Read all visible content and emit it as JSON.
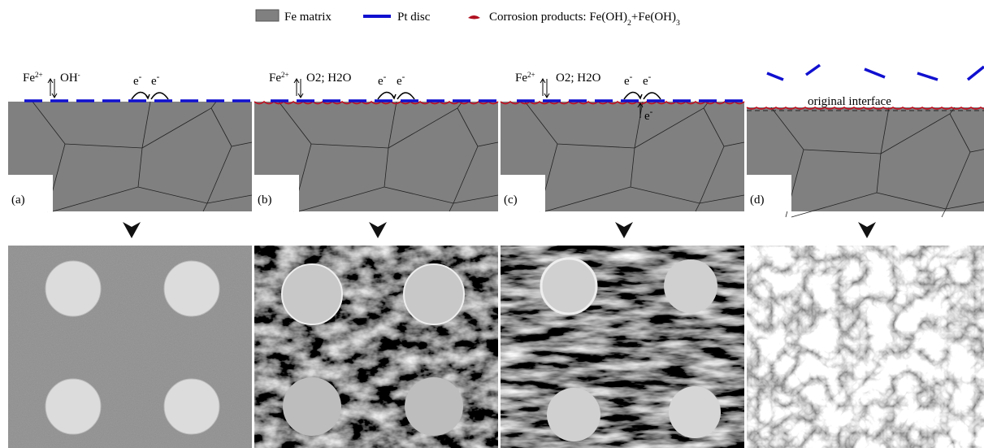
{
  "legend": [
    {
      "segments": [
        {
          "text": "Fe matrix"
        }
      ]
    },
    {
      "segments": [
        {
          "text": "Pt disc"
        }
      ]
    },
    {
      "segments": [
        {
          "text": "Corrosion products: Fe(OH)"
        },
        {
          "text": "2",
          "sub": true
        },
        {
          "text": "+Fe(OH)"
        },
        {
          "text": "3",
          "sub": true
        }
      ]
    }
  ],
  "panels": [
    {
      "label": "(a)",
      "annotations": [
        {
          "segments": [
            {
              "text": "Fe"
            },
            {
              "text": "2+",
              "sup": true
            }
          ]
        },
        {
          "segments": [
            {
              "text": "OH"
            },
            {
              "text": "-",
              "sup": true
            }
          ]
        },
        {
          "segments": [
            {
              "text": "e"
            },
            {
              "text": "-",
              "sup": true
            }
          ]
        },
        {
          "segments": [
            {
              "text": "e"
            },
            {
              "text": "-",
              "sup": true
            }
          ]
        }
      ]
    },
    {
      "label": "(b)",
      "annotations": [
        {
          "segments": [
            {
              "text": "Fe"
            },
            {
              "text": "2+",
              "sup": true
            }
          ]
        },
        {
          "segments": [
            {
              "text": "O2; H2O"
            }
          ]
        },
        {
          "segments": [
            {
              "text": "e"
            },
            {
              "text": "-",
              "sup": true
            }
          ]
        },
        {
          "segments": [
            {
              "text": "e"
            },
            {
              "text": "-",
              "sup": true
            }
          ]
        }
      ]
    },
    {
      "label": "(c)",
      "annotations": [
        {
          "segments": [
            {
              "text": "Fe"
            },
            {
              "text": "2+",
              "sup": true
            }
          ]
        },
        {
          "segments": [
            {
              "text": "O2; H2O"
            }
          ]
        },
        {
          "segments": [
            {
              "text": "e"
            },
            {
              "text": "-",
              "sup": true
            }
          ]
        },
        {
          "segments": [
            {
              "text": "e"
            },
            {
              "text": "-",
              "sup": true
            }
          ]
        },
        {
          "segments": [
            {
              "text": "e"
            },
            {
              "text": "-",
              "sup": true
            }
          ]
        }
      ]
    },
    {
      "label": "(d)",
      "annotations": [
        {
          "segments": [
            {
              "text": "original interface"
            }
          ]
        }
      ]
    }
  ]
}
